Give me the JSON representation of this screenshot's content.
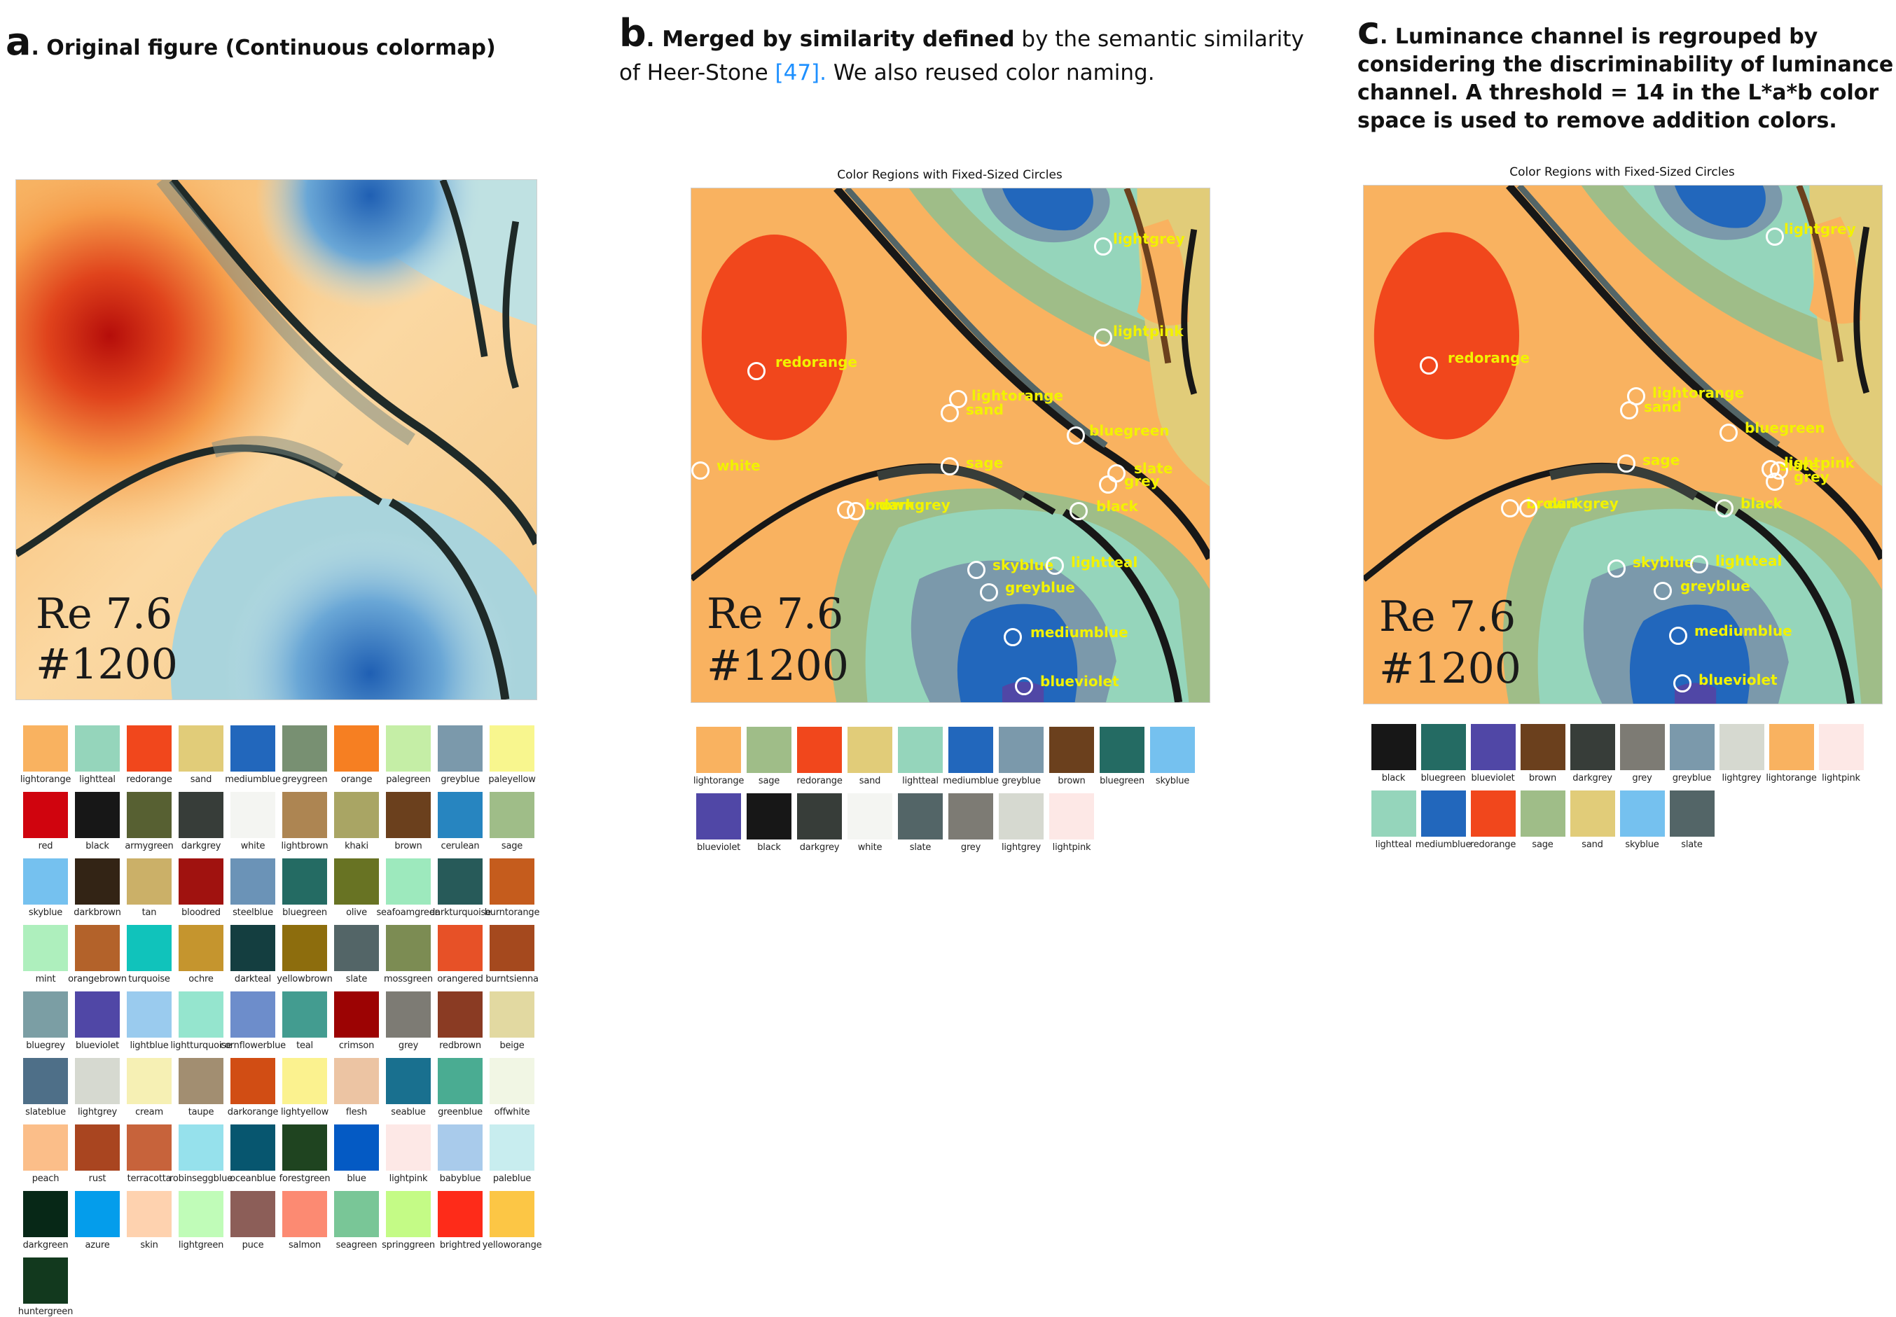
{
  "panel_a": {
    "letter": "a",
    "title": ". Original figure (Continuous colormap)",
    "overlay_line1": "Re 7.6",
    "overlay_line2": "#1200",
    "swatches": [
      {
        "name": "lightorange",
        "color": "#f9b260"
      },
      {
        "name": "lightteal",
        "color": "#95d5bb"
      },
      {
        "name": "redorange",
        "color": "#f1471c"
      },
      {
        "name": "sand",
        "color": "#e1cc79"
      },
      {
        "name": "mediumblue",
        "color": "#2267bc"
      },
      {
        "name": "greygreen",
        "color": "#789072"
      },
      {
        "name": "orange",
        "color": "#f67f22"
      },
      {
        "name": "palegreen",
        "color": "#c5eea6"
      },
      {
        "name": "greyblue",
        "color": "#7b99ab"
      },
      {
        "name": "paleyellow",
        "color": "#f8f68e"
      },
      {
        "name": "red",
        "color": "#d0040e"
      },
      {
        "name": "black",
        "color": "#171717"
      },
      {
        "name": "armygreen",
        "color": "#576032"
      },
      {
        "name": "darkgrey",
        "color": "#373d39"
      },
      {
        "name": "white",
        "color": "#f4f5f2"
      },
      {
        "name": "lightbrown",
        "color": "#ad8552"
      },
      {
        "name": "khaki",
        "color": "#a9a564"
      },
      {
        "name": "brown",
        "color": "#6b401d"
      },
      {
        "name": "cerulean",
        "color": "#2785c0"
      },
      {
        "name": "sage",
        "color": "#9fbd88"
      },
      {
        "name": "skyblue",
        "color": "#75c1ef"
      },
      {
        "name": "darkbrown",
        "color": "#332415"
      },
      {
        "name": "tan",
        "color": "#cbb068"
      },
      {
        "name": "bloodred",
        "color": "#a0120f"
      },
      {
        "name": "steelblue",
        "color": "#6b93b7"
      },
      {
        "name": "bluegreen",
        "color": "#246b63"
      },
      {
        "name": "olive",
        "color": "#687323"
      },
      {
        "name": "seafoamgreen",
        "color": "#9de9bd"
      },
      {
        "name": "darkturquoise",
        "color": "#275a59"
      },
      {
        "name": "burntorange",
        "color": "#c55c1d"
      },
      {
        "name": "mint",
        "color": "#aeefbd"
      },
      {
        "name": "orangebrown",
        "color": "#b3622a"
      },
      {
        "name": "turquoise",
        "color": "#10c3bb"
      },
      {
        "name": "ochre",
        "color": "#c5952e"
      },
      {
        "name": "darkteal",
        "color": "#143e40"
      },
      {
        "name": "yellowbrown",
        "color": "#8d6d0d"
      },
      {
        "name": "slate",
        "color": "#536567"
      },
      {
        "name": "mossgreen",
        "color": "#7c8c53"
      },
      {
        "name": "orangered",
        "color": "#e75127"
      },
      {
        "name": "burntsienna",
        "color": "#a5491e"
      },
      {
        "name": "bluegrey",
        "color": "#7b9ea4"
      },
      {
        "name": "blueviolet",
        "color": "#5047a6"
      },
      {
        "name": "lightblue",
        "color": "#9acbee"
      },
      {
        "name": "lightturquoise",
        "color": "#95e5ce"
      },
      {
        "name": "cornflowerblue",
        "color": "#6d8dcb"
      },
      {
        "name": "teal",
        "color": "#439c90"
      },
      {
        "name": "crimson",
        "color": "#9c0303"
      },
      {
        "name": "grey",
        "color": "#7d7b74"
      },
      {
        "name": "redbrown",
        "color": "#8a3b23"
      },
      {
        "name": "beige",
        "color": "#e2d9a1"
      },
      {
        "name": "slateblue",
        "color": "#4e6f88"
      },
      {
        "name": "lightgrey",
        "color": "#d6d9d0"
      },
      {
        "name": "cream",
        "color": "#f6f0b4"
      },
      {
        "name": "taupe",
        "color": "#a28e71"
      },
      {
        "name": "darkorange",
        "color": "#d14d14"
      },
      {
        "name": "lightyellow",
        "color": "#fbf28f"
      },
      {
        "name": "flesh",
        "color": "#ecc4a3"
      },
      {
        "name": "seablue",
        "color": "#19708f"
      },
      {
        "name": "greenblue",
        "color": "#4aac92"
      },
      {
        "name": "offwhite",
        "color": "#f1f6e4"
      },
      {
        "name": "peach",
        "color": "#fbbe89"
      },
      {
        "name": "rust",
        "color": "#a94520"
      },
      {
        "name": "terracotta",
        "color": "#c7633b"
      },
      {
        "name": "robinseggblue",
        "color": "#96e1ec"
      },
      {
        "name": "oceanblue",
        "color": "#07566f"
      },
      {
        "name": "forestgreen",
        "color": "#1f4420"
      },
      {
        "name": "blue",
        "color": "#045ac4"
      },
      {
        "name": "lightpink",
        "color": "#fde8e6"
      },
      {
        "name": "babyblue",
        "color": "#a9cbeb"
      },
      {
        "name": "paleblue",
        "color": "#c8edef"
      },
      {
        "name": "darkgreen",
        "color": "#072817"
      },
      {
        "name": "azure",
        "color": "#049deb"
      },
      {
        "name": "skin",
        "color": "#fed2af"
      },
      {
        "name": "lightgreen",
        "color": "#c0fcb8"
      },
      {
        "name": "puce",
        "color": "#8c5e58"
      },
      {
        "name": "salmon",
        "color": "#fc8a72"
      },
      {
        "name": "seagreen",
        "color": "#79c697"
      },
      {
        "name": "springgreen",
        "color": "#c4fb86"
      },
      {
        "name": "brightred",
        "color": "#fe2b19"
      },
      {
        "name": "yelloworange",
        "color": "#fcc645"
      },
      {
        "name": "huntergreen",
        "color": "#12391e"
      }
    ]
  },
  "panel_b": {
    "letter": "b",
    "title_bold": ". Merged by similarity defined",
    "title_rest_1": " by the semantic similarity",
    "title_line2_pre": "of Heer-Stone ",
    "title_ref": "[47].",
    "title_line2_post": " We also reused color naming.",
    "plot_title": "Color Regions with Fixed-Sized Circles",
    "overlay_line1": "Re 7.6",
    "overlay_line2": "#1200",
    "labels": [
      "lightgrey",
      "lightpink",
      "redorange",
      "lightorange",
      "sand",
      "bluegreen",
      "white",
      "sage",
      "slate",
      "grey",
      "brown",
      "darkgrey",
      "black",
      "skyblue",
      "lightteal",
      "greyblue",
      "mediumblue",
      "blueviolet"
    ],
    "swatches": [
      {
        "name": "lightorange",
        "color": "#f9b260"
      },
      {
        "name": "sage",
        "color": "#9fbd88"
      },
      {
        "name": "redorange",
        "color": "#f1471c"
      },
      {
        "name": "sand",
        "color": "#e1cc79"
      },
      {
        "name": "lightteal",
        "color": "#95d5bb"
      },
      {
        "name": "mediumblue",
        "color": "#2267bc"
      },
      {
        "name": "greyblue",
        "color": "#7b99ab"
      },
      {
        "name": "brown",
        "color": "#6b401d"
      },
      {
        "name": "bluegreen",
        "color": "#246b63"
      },
      {
        "name": "skyblue",
        "color": "#75c1ef"
      },
      {
        "name": "blueviolet",
        "color": "#5047a6"
      },
      {
        "name": "black",
        "color": "#171717"
      },
      {
        "name": "darkgrey",
        "color": "#373d39"
      },
      {
        "name": "white",
        "color": "#f4f5f2"
      },
      {
        "name": "slate",
        "color": "#536567"
      },
      {
        "name": "grey",
        "color": "#7d7b74"
      },
      {
        "name": "lightgrey",
        "color": "#d6d9d0"
      },
      {
        "name": "lightpink",
        "color": "#fde8e6"
      }
    ]
  },
  "panel_c": {
    "letter": "c",
    "title_line1": ". Luminance channel is regrouped by",
    "title_line2": "considering the discriminability of luminance",
    "title_line3": "channel. A threshold = 14 in the L*a*b color",
    "title_line4": "space is used to remove addition colors.",
    "plot_title": "Color Regions with Fixed-Sized Circles",
    "overlay_line1": "Re 7.6",
    "overlay_line2": "#1200",
    "labels": [
      "lightgrey",
      "redorange",
      "lightorange",
      "sand",
      "bluegreen",
      "sage",
      "slate",
      "lightpink",
      "grey",
      "brown",
      "darkgrey",
      "black",
      "skyblue",
      "lightteal",
      "greyblue",
      "mediumblue",
      "blueviolet"
    ],
    "swatches": [
      {
        "name": "black",
        "color": "#171717"
      },
      {
        "name": "bluegreen",
        "color": "#246b63"
      },
      {
        "name": "blueviolet",
        "color": "#5047a6"
      },
      {
        "name": "brown",
        "color": "#6b401d"
      },
      {
        "name": "darkgrey",
        "color": "#373d39"
      },
      {
        "name": "grey",
        "color": "#7d7b74"
      },
      {
        "name": "greyblue",
        "color": "#7b99ab"
      },
      {
        "name": "lightgrey",
        "color": "#d6d9d0"
      },
      {
        "name": "lightorange",
        "color": "#f9b260"
      },
      {
        "name": "lightpink",
        "color": "#fde8e6"
      },
      {
        "name": "lightteal",
        "color": "#95d5bb"
      },
      {
        "name": "mediumblue",
        "color": "#2267bc"
      },
      {
        "name": "redorange",
        "color": "#f1471c"
      },
      {
        "name": "sage",
        "color": "#9fbd88"
      },
      {
        "name": "sand",
        "color": "#e1cc79"
      },
      {
        "name": "skyblue",
        "color": "#75c1ef"
      },
      {
        "name": "slate",
        "color": "#536567"
      }
    ]
  }
}
